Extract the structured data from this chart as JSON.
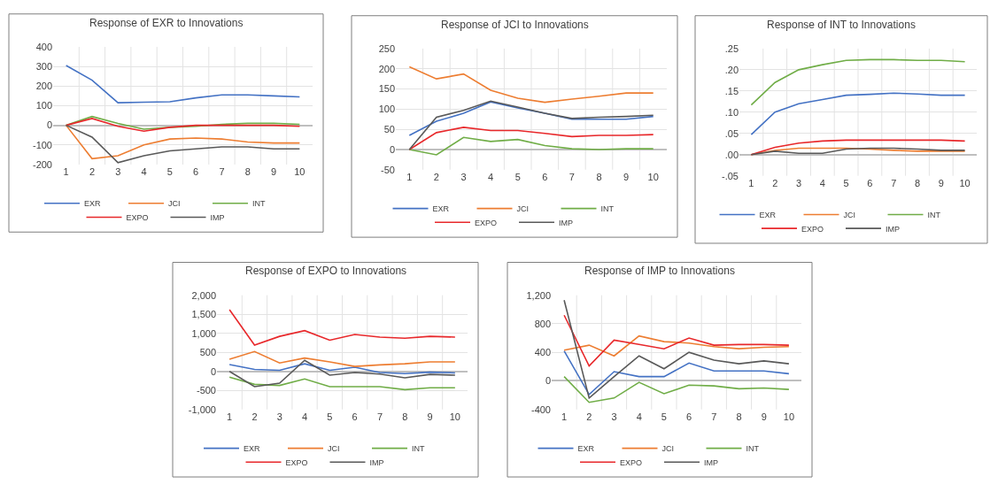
{
  "chart_data": [
    {
      "type": "line",
      "title": "Response of EXR to Innovations",
      "categories": [
        "1",
        "2",
        "3",
        "4",
        "5",
        "6",
        "7",
        "8",
        "9",
        "10"
      ],
      "ylim": [
        -200,
        400
      ],
      "yticks": [
        -200,
        -100,
        0,
        100,
        200,
        300,
        400
      ],
      "grid": true,
      "legend": "bottom",
      "series": [
        {
          "name": "EXR",
          "color": "#4472c4",
          "values": [
            305,
            230,
            115,
            118,
            120,
            140,
            155,
            155,
            150,
            145
          ]
        },
        {
          "name": "JCI",
          "color": "#ed7d31",
          "values": [
            0,
            -170,
            -155,
            -100,
            -70,
            -65,
            -70,
            -85,
            -90,
            -90
          ]
        },
        {
          "name": "INT",
          "color": "#70ad47",
          "values": [
            0,
            45,
            10,
            -20,
            -10,
            -5,
            5,
            10,
            10,
            5
          ]
        },
        {
          "name": "EXPO",
          "color": "#e8282b",
          "values": [
            0,
            35,
            -5,
            -30,
            -10,
            0,
            0,
            0,
            0,
            -5
          ]
        },
        {
          "name": "IMP",
          "color": "#595959",
          "values": [
            0,
            -60,
            -190,
            -155,
            -130,
            -120,
            -110,
            -110,
            -120,
            -120
          ]
        }
      ]
    },
    {
      "type": "line",
      "title": "Response of JCI to Innovations",
      "categories": [
        "1",
        "2",
        "3",
        "4",
        "5",
        "6",
        "7",
        "8",
        "9",
        "10"
      ],
      "ylim": [
        -50,
        250
      ],
      "yticks": [
        -50,
        0,
        50,
        100,
        150,
        200,
        250
      ],
      "grid": true,
      "legend": "bottom",
      "series": [
        {
          "name": "EXR",
          "color": "#4472c4",
          "values": [
            35,
            70,
            90,
            118,
            103,
            90,
            75,
            75,
            75,
            82
          ]
        },
        {
          "name": "JCI",
          "color": "#ed7d31",
          "values": [
            205,
            175,
            187,
            147,
            127,
            117,
            125,
            132,
            140,
            140
          ]
        },
        {
          "name": "INT",
          "color": "#70ad47",
          "values": [
            0,
            -13,
            30,
            20,
            25,
            10,
            2,
            0,
            2,
            2
          ]
        },
        {
          "name": "EXPO",
          "color": "#e8282b",
          "values": [
            0,
            42,
            55,
            47,
            47,
            40,
            32,
            35,
            35,
            37
          ]
        },
        {
          "name": "IMP",
          "color": "#595959",
          "values": [
            0,
            80,
            97,
            120,
            105,
            90,
            77,
            80,
            82,
            85
          ]
        }
      ]
    },
    {
      "type": "line",
      "title": "Response of INT to Innovations",
      "categories": [
        "1",
        "2",
        "3",
        "4",
        "5",
        "6",
        "7",
        "8",
        "9",
        "10"
      ],
      "ylim": [
        -0.05,
        0.25
      ],
      "yticks": [
        {
          "value": -0.05,
          "label": "-.05"
        },
        {
          "value": 0,
          "label": ".00"
        },
        {
          "value": 0.05,
          "label": ".05"
        },
        {
          "value": 0.1,
          "label": ".10"
        },
        {
          "value": 0.15,
          "label": ".15"
        },
        {
          "value": 0.2,
          "label": ".20"
        },
        {
          "value": 0.25,
          "label": ".25"
        }
      ],
      "grid": true,
      "legend": "bottom",
      "series": [
        {
          "name": "EXR",
          "color": "#4472c4",
          "values": [
            0.047,
            0.1,
            0.12,
            0.13,
            0.14,
            0.142,
            0.145,
            0.143,
            0.14,
            0.14
          ]
        },
        {
          "name": "JCI",
          "color": "#ed7d31",
          "values": [
            0,
            0.01,
            0.015,
            0.015,
            0.015,
            0.013,
            0.01,
            0.008,
            0.008,
            0.008
          ]
        },
        {
          "name": "INT",
          "color": "#70ad47",
          "values": [
            0.117,
            0.17,
            0.2,
            0.212,
            0.222,
            0.224,
            0.224,
            0.222,
            0.222,
            0.219
          ]
        },
        {
          "name": "EXPO",
          "color": "#e8282b",
          "values": [
            0,
            0.017,
            0.027,
            0.032,
            0.034,
            0.034,
            0.034,
            0.034,
            0.034,
            0.032
          ]
        },
        {
          "name": "IMP",
          "color": "#595959",
          "values": [
            0,
            0.008,
            0.003,
            0.003,
            0.013,
            0.015,
            0.015,
            0.013,
            0.01,
            0.01
          ]
        }
      ]
    },
    {
      "type": "line",
      "title": "Response of EXPO to Innovations",
      "categories": [
        "1",
        "2",
        "3",
        "4",
        "5",
        "6",
        "7",
        "8",
        "9",
        "10"
      ],
      "ylim": [
        -1000,
        2000
      ],
      "yticks": [
        {
          "value": -1000,
          "label": "-1,000"
        },
        -500,
        0,
        500,
        {
          "value": 1000,
          "label": "1,000"
        },
        {
          "value": 1500,
          "label": "1,500"
        },
        {
          "value": 2000,
          "label": "2,000"
        }
      ],
      "grid": true,
      "legend": "bottom",
      "series": [
        {
          "name": "EXR",
          "color": "#4472c4",
          "values": [
            180,
            50,
            30,
            200,
            30,
            110,
            -30,
            -60,
            -20,
            -40
          ]
        },
        {
          "name": "JCI",
          "color": "#ed7d31",
          "values": [
            320,
            520,
            220,
            350,
            250,
            130,
            170,
            200,
            250,
            250
          ]
        },
        {
          "name": "INT",
          "color": "#70ad47",
          "values": [
            -150,
            -340,
            -370,
            -200,
            -400,
            -400,
            -400,
            -480,
            -430,
            -430
          ]
        },
        {
          "name": "EXPO",
          "color": "#e8282b",
          "values": [
            1620,
            690,
            920,
            1070,
            820,
            970,
            900,
            870,
            920,
            900
          ]
        },
        {
          "name": "IMP",
          "color": "#595959",
          "values": [
            0,
            -400,
            -310,
            290,
            -100,
            -30,
            -70,
            -170,
            -80,
            -100
          ]
        }
      ]
    },
    {
      "type": "line",
      "title": "Response of IMP to Innovations",
      "categories": [
        "1",
        "2",
        "3",
        "4",
        "5",
        "6",
        "7",
        "8",
        "9",
        "10"
      ],
      "ylim": [
        -400,
        1200
      ],
      "yticks": [
        -400,
        0,
        400,
        800,
        {
          "value": 1200,
          "label": "1,200"
        }
      ],
      "grid": true,
      "legend": "bottom",
      "series": [
        {
          "name": "EXR",
          "color": "#4472c4",
          "values": [
            420,
            -190,
            130,
            60,
            60,
            250,
            140,
            140,
            140,
            100
          ]
        },
        {
          "name": "JCI",
          "color": "#ed7d31",
          "values": [
            430,
            500,
            350,
            630,
            550,
            530,
            480,
            450,
            470,
            480
          ]
        },
        {
          "name": "INT",
          "color": "#70ad47",
          "values": [
            60,
            -300,
            -240,
            -20,
            -180,
            -60,
            -70,
            -110,
            -100,
            -120
          ]
        },
        {
          "name": "EXPO",
          "color": "#e8282b",
          "values": [
            920,
            210,
            570,
            510,
            450,
            600,
            500,
            510,
            510,
            500
          ]
        },
        {
          "name": "IMP",
          "color": "#595959",
          "values": [
            1130,
            -240,
            60,
            350,
            170,
            400,
            290,
            240,
            280,
            240
          ]
        }
      ]
    }
  ]
}
